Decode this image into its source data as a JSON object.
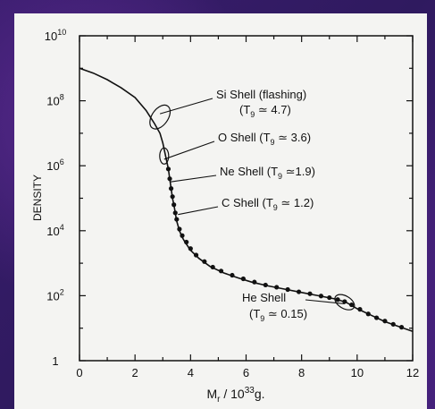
{
  "background": {
    "slide_color": "#3b1f72",
    "panel_color": "#f4f4f2"
  },
  "chart_data": {
    "type": "line",
    "title": "",
    "xlabel": "M",
    "xlabel_sub": "r",
    "xlabel_rest": " / 10",
    "xlabel_exp": "33",
    "xlabel_unit": "g.",
    "ylabel": "DENSITY",
    "xlim": [
      0,
      12
    ],
    "ylim_log10": [
      0,
      10
    ],
    "x_ticks": [
      0,
      2,
      4,
      6,
      8,
      10,
      12
    ],
    "x_tick_labels": [
      "0",
      "2",
      "4",
      "6",
      "8",
      "10",
      "12"
    ],
    "y_ticks_log10": [
      0,
      2,
      4,
      6,
      8,
      10
    ],
    "y_tick_labels": [
      {
        "base": "1",
        "exp": ""
      },
      {
        "base": "10",
        "exp": "2"
      },
      {
        "base": "10",
        "exp": "4"
      },
      {
        "base": "10",
        "exp": "6"
      },
      {
        "base": "10",
        "exp": "8"
      },
      {
        "base": "10",
        "exp": "10"
      }
    ],
    "grid": false,
    "series": [
      {
        "x": [
          0,
          0.5,
          1.0,
          1.5,
          2.0,
          2.4,
          2.7,
          2.9,
          3.0,
          3.1,
          3.2,
          3.25,
          3.3,
          3.35,
          3.4,
          3.45,
          3.5,
          3.6,
          3.7,
          3.8,
          4.0,
          4.3,
          4.7,
          5.2,
          5.7,
          6.2,
          6.8,
          7.4,
          8.0,
          8.6,
          9.2,
          9.6,
          10.0,
          10.5,
          11.0,
          11.5,
          12.0
        ],
        "log10_density": [
          9.0,
          8.85,
          8.65,
          8.4,
          8.1,
          7.7,
          7.3,
          7.0,
          6.7,
          6.3,
          5.9,
          5.6,
          5.3,
          5.0,
          4.8,
          4.55,
          4.3,
          4.0,
          3.8,
          3.65,
          3.4,
          3.15,
          2.9,
          2.7,
          2.55,
          2.42,
          2.3,
          2.2,
          2.1,
          2.0,
          1.9,
          1.8,
          1.6,
          1.4,
          1.2,
          1.05,
          0.9
        ]
      }
    ],
    "markers": [
      [
        3.2,
        5.9
      ],
      [
        3.25,
        5.6
      ],
      [
        3.3,
        5.3
      ],
      [
        3.35,
        5.05
      ],
      [
        3.4,
        4.8
      ],
      [
        3.45,
        4.55
      ],
      [
        3.5,
        4.35
      ],
      [
        3.6,
        4.05
      ],
      [
        3.7,
        3.85
      ],
      [
        3.85,
        3.65
      ],
      [
        4.0,
        3.45
      ],
      [
        4.2,
        3.25
      ],
      [
        4.5,
        3.05
      ],
      [
        4.8,
        2.88
      ],
      [
        5.1,
        2.76
      ],
      [
        5.5,
        2.63
      ],
      [
        5.9,
        2.52
      ],
      [
        6.3,
        2.42
      ],
      [
        6.7,
        2.33
      ],
      [
        7.1,
        2.26
      ],
      [
        7.5,
        2.19
      ],
      [
        7.9,
        2.12
      ],
      [
        8.3,
        2.06
      ],
      [
        8.7,
        1.99
      ],
      [
        9.0,
        1.94
      ],
      [
        9.3,
        1.88
      ],
      [
        9.55,
        1.82
      ],
      [
        9.8,
        1.72
      ],
      [
        10.1,
        1.58
      ],
      [
        10.4,
        1.44
      ],
      [
        10.7,
        1.32
      ],
      [
        11.0,
        1.22
      ],
      [
        11.3,
        1.12
      ],
      [
        11.6,
        1.03
      ]
    ],
    "annotations": [
      {
        "pre": "Si  Shell (flashing)",
        "line2": "(T",
        "sub": "9",
        "post": " ≃ 4.7)",
        "x": 2.9,
        "y": 7.6
      },
      {
        "pre": "O  Shell (T",
        "sub": "9",
        "post": " ≃ 3.6)",
        "x": 3.05,
        "y": 6.2
      },
      {
        "pre": "Ne  Shell (T",
        "sub": "9",
        "post": " ≃1.9)",
        "x": 3.25,
        "y": 5.5
      },
      {
        "pre": "C  Shell (T",
        "sub": "9",
        "post": " ≃ 1.2)",
        "x": 3.55,
        "y": 4.5
      },
      {
        "pre": "He  Shell",
        "line2": "(T",
        "sub": "9",
        "post": " ≃ 0.15)",
        "x": 9.55,
        "y": 1.75
      }
    ]
  }
}
